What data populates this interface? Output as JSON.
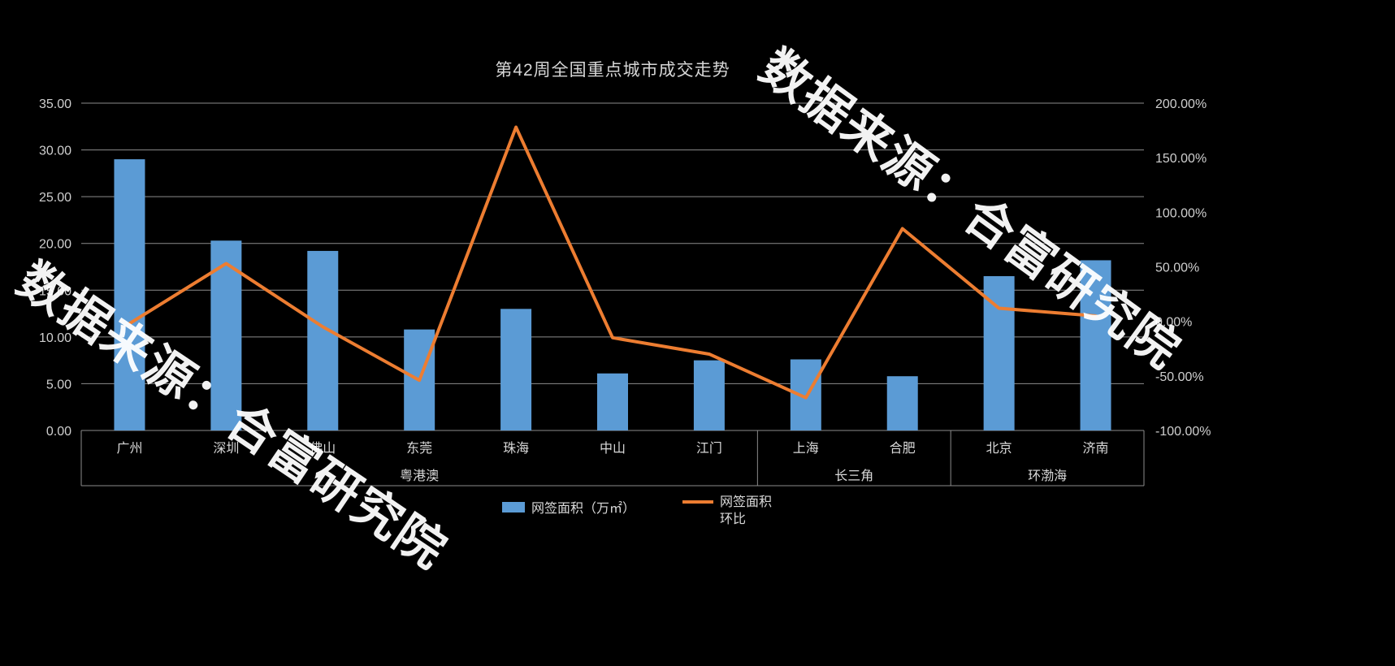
{
  "title": "第42周全国重点城市成交走势",
  "watermark": "数据来源：合富研究院",
  "background": "#000000",
  "legend": {
    "bar_label": "网签面积（万㎡）",
    "line_label_1": "网签面积",
    "line_label_2": "环比"
  },
  "chart_data": {
    "type": "combo",
    "title": "第42周全国重点城市成交走势",
    "categories": [
      "广州",
      "深圳",
      "佛山",
      "东莞",
      "珠海",
      "中山",
      "江门",
      "上海",
      "合肥",
      "北京",
      "济南"
    ],
    "groups": [
      {
        "label": "粤港澳",
        "span": 7
      },
      {
        "label": "长三角",
        "span": 2
      },
      {
        "label": "环渤海",
        "span": 2
      }
    ],
    "series": [
      {
        "name": "网签面积（万㎡）",
        "type": "bar",
        "axis": "left",
        "color": "#5B9BD5",
        "values": [
          29.0,
          20.3,
          19.2,
          10.8,
          13.0,
          6.1,
          7.5,
          7.6,
          5.8,
          16.5,
          18.2
        ]
      },
      {
        "name": "网签面积环比",
        "type": "line",
        "axis": "right",
        "color": "#ED7D31",
        "values_pct": [
          -2,
          53,
          -5,
          -54,
          178,
          -15,
          -30,
          -70,
          85,
          12,
          5
        ]
      }
    ],
    "left_axis": {
      "min": 0,
      "max": 35,
      "step": 5,
      "labels": [
        "0.00",
        "5.00",
        "10.00",
        "15.00",
        "20.00",
        "25.00",
        "30.00",
        "35.00"
      ]
    },
    "right_axis": {
      "min": -100,
      "max": 200,
      "step": 50,
      "labels": [
        "-100.00%",
        "-50.00%",
        "0.00%",
        "50.00%",
        "100.00%",
        "150.00%",
        "200.00%"
      ]
    },
    "grid": true,
    "legend_position": "bottom",
    "colors": {
      "grid": "#8c8c8c",
      "axis_text": "#cfcfcf",
      "category_text": "#d9d9d9"
    }
  }
}
